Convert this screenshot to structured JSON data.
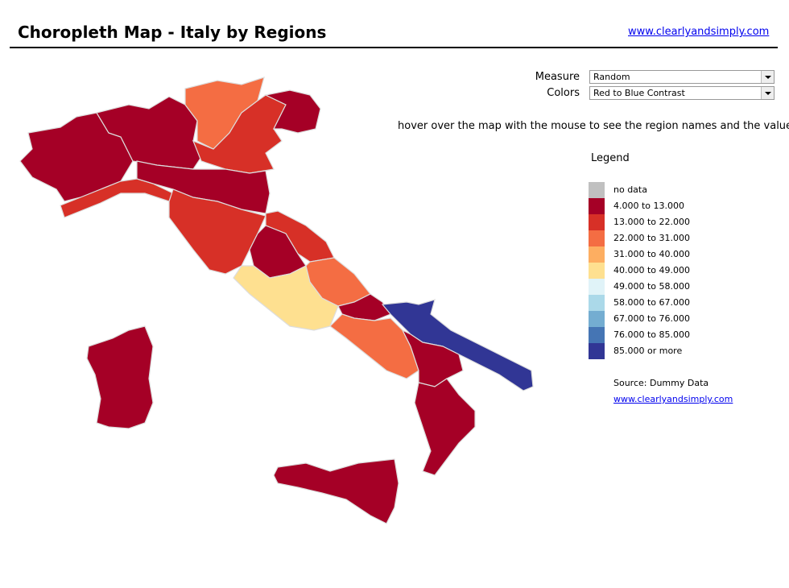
{
  "header": {
    "title": "Choropleth Map - Italy by Regions",
    "link": "www.clearlyandsimply.com"
  },
  "controls": {
    "measure_label": "Measure",
    "measure_value": "Random",
    "colors_label": "Colors",
    "colors_value": "Red to Blue Contrast"
  },
  "hint": "hover over the map with the mouse to see the region names and the values",
  "legend": {
    "title": "Legend",
    "items": [
      {
        "label": "no data",
        "color": "#c0c0c0"
      },
      {
        "label": "4.000  to 13.000",
        "color": "#a50026"
      },
      {
        "label": "13.000 to 22.000",
        "color": "#d73027"
      },
      {
        "label": "22.000 to 31.000",
        "color": "#f46d43"
      },
      {
        "label": "31.000 to 40.000",
        "color": "#fdae61"
      },
      {
        "label": "40.000 to 49.000",
        "color": "#fee090"
      },
      {
        "label": "49.000 to 58.000",
        "color": "#e0f3f8"
      },
      {
        "label": "58.000 to 67.000",
        "color": "#abd9e9"
      },
      {
        "label": "67.000 to 76.000",
        "color": "#74add1"
      },
      {
        "label": "76.000 to 85.000",
        "color": "#4575b4"
      },
      {
        "label": "85.000 or more",
        "color": "#313695"
      }
    ]
  },
  "footer": {
    "source": "Source: Dummy Data",
    "link": "www.clearlyandsimply.com"
  }
}
